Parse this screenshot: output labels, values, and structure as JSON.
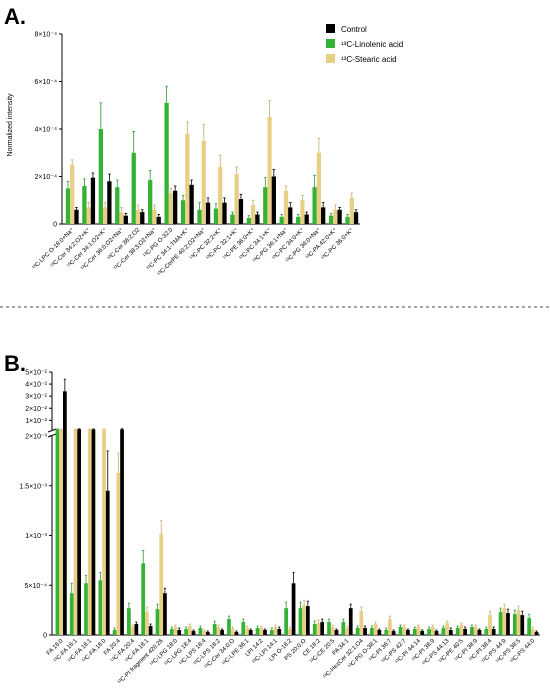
{
  "panels": [
    {
      "label": "A."
    },
    {
      "label": "B."
    }
  ],
  "colors": {
    "control": "#000000",
    "linolenic": "#33b233",
    "stearic": "#e9cf86",
    "axis": "#000000"
  },
  "legend": {
    "placement": "top-right",
    "entries": [
      {
        "series": "control",
        "text": "Control"
      },
      {
        "series": "linolenic",
        "text": "¹³C-Linolenic acid"
      },
      {
        "series": "stearic",
        "text": "¹³C-Stearic acid"
      }
    ]
  },
  "chart_data": [
    {
      "panel": "A.",
      "type": "bar",
      "ylabel": "Normalized intensity",
      "ylim": [
        0,
        0.0008
      ],
      "yticks": [
        0,
        0.0002,
        0.0004,
        0.0006,
        0.0008
      ],
      "ytick_labels": [
        "0",
        "2×10⁻⁴",
        "4×10⁻⁴",
        "6×10⁻⁴",
        "8×10⁻⁴"
      ],
      "categories": [
        "¹³C-LPC O-16:0+Na⁺",
        "¹³C-Cer 34:2;O2+K⁺",
        "¹³C-Cer 34:1;O2+K⁺",
        "¹³C-Cer 36:0;O2+Na⁺",
        "¹³C-Cer 38:2;O2",
        "¹³C-Cer 38:3;O2+Na⁺",
        "¹³C-PG O-32:0",
        "¹³C-PC 34:1-TMA+K⁺",
        "¹³C-CerPE 40:2;O2+Na⁺",
        "¹³C-PC 32:2+K⁺",
        "¹³C-PC 32:1+K⁺",
        "¹³C-PE 36:0+K⁺",
        "¹³C-PC 34:1+K⁺",
        "¹³C-PG 36:1+Na⁺",
        "¹³C-PC 34:0+K⁺",
        "¹³C-PG 36:0+Na⁺",
        "¹³C-PA 42:0+K⁺",
        "¹³C-PC 36:0+K⁺"
      ],
      "series": [
        {
          "key": "linolenic",
          "values": [
            0.00015,
            0.00016,
            0.0004,
            0.000155,
            0.0003,
            0.000185,
            0.00051,
            0.0001,
            6e-05,
            6.5e-05,
            4e-05,
            2.5e-05,
            0.000155,
            3e-05,
            3e-05,
            0.000155,
            3.5e-05,
            3e-05
          ],
          "errors": [
            3e-05,
            3e-05,
            0.00011,
            3e-05,
            9e-05,
            4e-05,
            7e-05,
            2e-05,
            3e-05,
            2e-05,
            1e-05,
            1e-05,
            4e-05,
            1e-05,
            1e-05,
            5e-05,
            1e-05,
            1e-05
          ]
        },
        {
          "key": "stearic",
          "values": [
            0.00025,
            7e-05,
            7e-05,
            5e-05,
            6e-05,
            6e-05,
            0.00013,
            0.00038,
            0.00035,
            0.00024,
            0.00021,
            8e-05,
            0.00045,
            0.00014,
            0.0001,
            0.0003,
            6e-05,
            0.00011
          ],
          "errors": [
            2e-05,
            2e-05,
            2e-05,
            2e-05,
            2e-05,
            2e-05,
            2e-05,
            5e-05,
            7e-05,
            5e-05,
            3e-05,
            2e-05,
            7e-05,
            2e-05,
            2e-05,
            6e-05,
            2e-05,
            2e-05
          ]
        },
        {
          "key": "control",
          "values": [
            6e-05,
            0.000195,
            0.00018,
            3.5e-05,
            5e-05,
            3e-05,
            0.00014,
            0.000165,
            9e-05,
            9e-05,
            0.000105,
            4e-05,
            0.0002,
            7e-05,
            4e-05,
            7e-05,
            6e-05,
            5e-05
          ],
          "errors": [
            1e-05,
            2e-05,
            3e-05,
            1e-05,
            1e-05,
            1e-05,
            2e-05,
            2e-05,
            2e-05,
            2e-05,
            2e-05,
            1e-05,
            3e-05,
            2e-05,
            1e-05,
            2e-05,
            1e-05,
            1e-05
          ]
        }
      ]
    },
    {
      "panel": "B.",
      "type": "bar",
      "y_axis_break": true,
      "ylim_lower": [
        0,
        0.002
      ],
      "yticks_lower": [
        0,
        0.0005,
        0.001,
        0.0015,
        0.002
      ],
      "ytick_labels_lower": [
        "0",
        "5×10⁻⁴",
        "1×10⁻³",
        "1.5×10⁻³",
        "2×10⁻³"
      ],
      "ylim_upper": [
        0.002,
        0.05
      ],
      "yticks_upper": [
        0.01,
        0.02,
        0.03,
        0.04,
        0.05
      ],
      "ytick_labels_upper": [
        "1×10⁻²",
        "2×10⁻²",
        "3×10⁻²",
        "4×10⁻²",
        "5×10⁻²"
      ],
      "categories": [
        "FA 16:0",
        "¹³C-FA 16:1",
        "¹³C-FA 18:1",
        "¹³C-FA 18:0",
        "FA 20:4",
        "¹³C-FA 20:4",
        "¹³C-FA 18:1",
        "¹³C-PI fragment 420.26",
        "¹³C-LPG 18:0",
        "¹³C-LPG 18:4",
        "¹³C-LPS 18:4",
        "¹³C-LPS 18:2",
        "¹³C-Cer 34:0;O",
        "¹³C-LPE 36:1",
        "LPI 14:2",
        "¹³C-LPI 14:1",
        "LPI O-18:2",
        "PS 20:0;O",
        "CE 18:2",
        "¹³C-CE 20:5",
        "PA 34:1",
        "¹³C-HexCer 32:1;O4",
        "¹³C-PG O-38:1",
        "¹³C-PI 36:7",
        "¹³C-PS 42:7",
        "¹³C-PI 44:14",
        "¹³C-PI 38:9",
        "¹³C-PS 44:13",
        "¹³C-PE 40:5",
        "¹³C-PI 38:9",
        "¹³C-PI 38:4",
        "¹³C-PS 44:9",
        "¹³C-PS 38:5",
        "¹³C-PS 44:0"
      ],
      "series": [
        {
          "key": "linolenic",
          "values": [
            0.0026,
            0.00042,
            0.00052,
            0.00055,
            5e-05,
            0.00027,
            0.00072,
            0.00026,
            6e-05,
            6e-05,
            7e-05,
            0.00011,
            0.00016,
            0.00013,
            7e-05,
            5e-05,
            0.00027,
            0.00027,
            0.00011,
            0.00013,
            0.00013,
            7e-05,
            7e-05,
            5e-05,
            8e-05,
            6e-05,
            6e-05,
            7e-05,
            7e-05,
            8e-05,
            6e-05,
            0.00023,
            0.00021,
            0.00017
          ],
          "errors": [
            0.0003,
            0.0001,
            8e-05,
            8e-05,
            2e-05,
            5e-05,
            0.00013,
            5e-05,
            2e-05,
            2e-05,
            2e-05,
            3e-05,
            3e-05,
            3e-05,
            2e-05,
            2e-05,
            6e-05,
            6e-05,
            3e-05,
            3e-05,
            3e-05,
            2e-05,
            2e-05,
            2e-05,
            2e-05,
            2e-05,
            2e-05,
            2e-05,
            2e-05,
            2e-05,
            2e-05,
            4e-05,
            4e-05,
            4e-05
          ]
        },
        {
          "key": "stearic",
          "values": [
            0.0026,
            0.0026,
            0.0026,
            0.0026,
            0.00163,
            8e-05,
            0.00023,
            0.00102,
            8e-05,
            9e-05,
            4e-05,
            8e-05,
            6e-05,
            7e-05,
            7e-05,
            8e-05,
            6e-05,
            0.0003,
            0.00012,
            8e-05,
            7e-05,
            0.00024,
            0.00011,
            0.00016,
            8e-05,
            8e-05,
            8e-05,
            0.00012,
            0.0001,
            8e-05,
            0.0002,
            0.00027,
            0.00025,
            6e-05
          ],
          "errors": [
            0.0001,
            0.0001,
            0.0001,
            0.0001,
            0.0002,
            2e-05,
            5e-05,
            0.00013,
            2e-05,
            2e-05,
            1e-05,
            2e-05,
            2e-05,
            2e-05,
            2e-05,
            2e-05,
            2e-05,
            5e-05,
            3e-05,
            2e-05,
            2e-05,
            4e-05,
            2e-05,
            3e-05,
            2e-05,
            2e-05,
            2e-05,
            2e-05,
            2e-05,
            2e-05,
            4e-05,
            4e-05,
            4e-05,
            2e-05
          ]
        },
        {
          "key": "control",
          "values": [
            0.034,
            0.00269,
            0.0025,
            0.00145,
            0.0026,
            0.00011,
            9e-05,
            0.00042,
            5e-05,
            4e-05,
            3e-05,
            5e-05,
            3e-05,
            5e-05,
            5e-05,
            6e-05,
            0.00052,
            0.00029,
            0.00013,
            5e-05,
            0.00027,
            7e-05,
            5e-05,
            4e-05,
            5e-05,
            4e-05,
            4e-05,
            5e-05,
            6e-05,
            5e-05,
            6e-05,
            0.00022,
            0.0002,
            3e-05
          ],
          "errors": [
            0.01,
            0.0003,
            0.0004,
            0.0004,
            0.0005,
            2e-05,
            2e-05,
            5e-05,
            2e-05,
            1e-05,
            1e-05,
            1e-05,
            1e-05,
            1e-05,
            1e-05,
            2e-05,
            0.00011,
            5e-05,
            3e-05,
            1e-05,
            4e-05,
            2e-05,
            1e-05,
            1e-05,
            1e-05,
            1e-05,
            1e-05,
            2e-05,
            2e-05,
            1e-05,
            2e-05,
            4e-05,
            4e-05,
            1e-05
          ]
        }
      ]
    }
  ]
}
